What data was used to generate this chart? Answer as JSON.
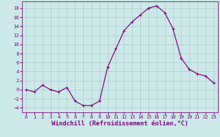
{
  "x": [
    0,
    1,
    2,
    3,
    4,
    5,
    6,
    7,
    8,
    9,
    10,
    11,
    12,
    13,
    14,
    15,
    16,
    17,
    18,
    19,
    20,
    21,
    22,
    23
  ],
  "y": [
    0,
    -0.5,
    1,
    0,
    -0.5,
    0.5,
    -2.5,
    -3.5,
    -3.5,
    -2.5,
    5,
    9,
    13,
    15,
    16.5,
    18,
    18.5,
    17,
    13.5,
    7,
    4.5,
    3.5,
    3,
    1.5
  ],
  "line_color": "#800080",
  "marker": "+",
  "background_color": "#cce8e8",
  "grid_color": "#aacaca",
  "xlabel": "Windchill (Refroidissement éolien,°C)",
  "xlim": [
    -0.5,
    23.5
  ],
  "ylim": [
    -5,
    19.5
  ],
  "yticks": [
    -4,
    -2,
    0,
    2,
    4,
    6,
    8,
    10,
    12,
    14,
    16,
    18
  ],
  "xticks": [
    0,
    1,
    2,
    3,
    4,
    5,
    6,
    7,
    8,
    9,
    10,
    11,
    12,
    13,
    14,
    15,
    16,
    17,
    18,
    19,
    20,
    21,
    22,
    23
  ],
  "tick_fontsize": 5,
  "xlabel_fontsize": 6.5,
  "marker_size": 3,
  "linewidth": 0.9
}
